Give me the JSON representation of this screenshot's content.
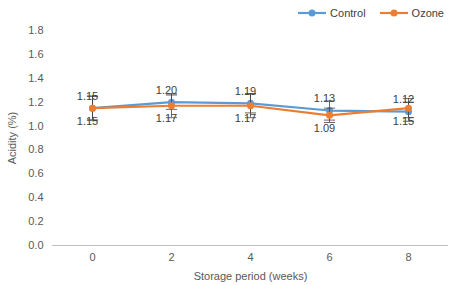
{
  "chart_data": {
    "type": "line",
    "x_label": "Storage period (weeks)",
    "y_label": "Acidity (%)",
    "categories": [
      "0",
      "2",
      "4",
      "6",
      "8"
    ],
    "ylim": [
      0,
      1.8
    ],
    "yticks": [
      {
        "value": 0,
        "label": "0.0"
      },
      {
        "value": 0.2,
        "label": "0.2"
      },
      {
        "value": 0.4,
        "label": "0.4"
      },
      {
        "value": 0.6,
        "label": "0.6"
      },
      {
        "value": 0.8,
        "label": "0.8"
      },
      {
        "value": 1,
        "label": "1.0"
      },
      {
        "value": 1.2,
        "label": "1.2"
      },
      {
        "value": 1.4,
        "label": "1.4"
      },
      {
        "value": 1.6,
        "label": "1.6"
      },
      {
        "value": 1.8,
        "label": "1.8"
      }
    ],
    "grid": false,
    "legend": "top-right",
    "data_labels": true,
    "series": [
      {
        "name": "Control",
        "color": "#5b9bd5",
        "marker": "circle",
        "line_style": "solid",
        "values": [
          1.15,
          1.2,
          1.19,
          1.13,
          1.12
        ],
        "value_labels": [
          "1.15",
          "1.20",
          "1.19",
          "1.13",
          "1.12"
        ],
        "errors": [
          0.1,
          0.06,
          0.08,
          0.08,
          0.08
        ]
      },
      {
        "name": "Ozone",
        "color": "#ed7d31",
        "marker": "circle",
        "line_style": "solid",
        "values": [
          1.15,
          1.17,
          1.17,
          1.09,
          1.15
        ],
        "value_labels": [
          "1.15",
          "1.17",
          "1.17",
          "1.09",
          "1.15"
        ],
        "errors": [
          0.1,
          0.1,
          0.1,
          0.06,
          0.08
        ]
      }
    ]
  }
}
